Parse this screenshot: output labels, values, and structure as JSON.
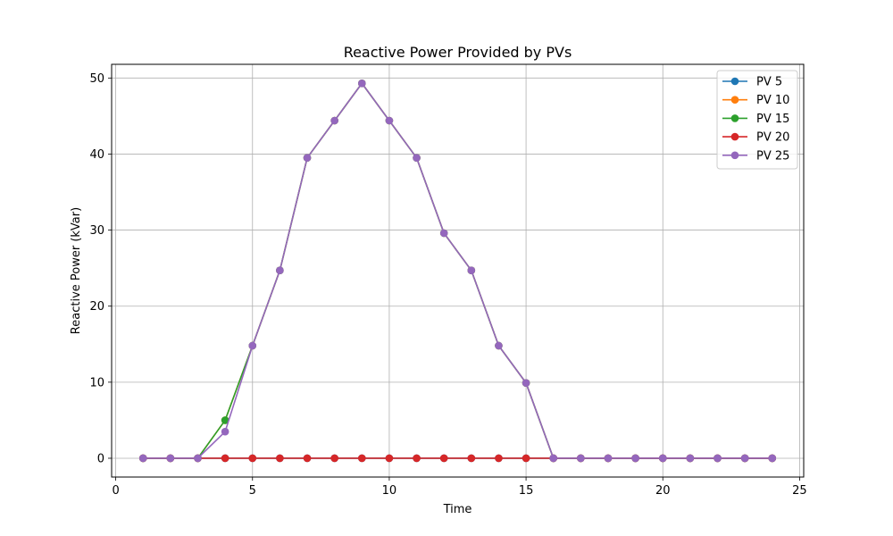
{
  "chart_data": {
    "type": "line",
    "title": "Reactive Power Provided by PVs",
    "xlabel": "Time",
    "ylabel": "Reactive Power (kVar)",
    "xlim": [
      -0.15,
      25.15
    ],
    "ylim": [
      -2.47,
      51.8
    ],
    "xticks": [
      0,
      5,
      10,
      15,
      20,
      25
    ],
    "yticks": [
      0,
      10,
      20,
      30,
      40,
      50
    ],
    "grid": true,
    "legend_position": "top-right",
    "x": [
      1,
      2,
      3,
      4,
      5,
      6,
      7,
      8,
      9,
      10,
      11,
      12,
      13,
      14,
      15,
      16,
      17,
      18,
      19,
      20,
      21,
      22,
      23,
      24
    ],
    "series": [
      {
        "name": "PV 5",
        "color": "#1f77b4",
        "values": [
          0,
          0,
          0,
          0,
          0,
          0,
          0,
          0,
          0,
          0,
          0,
          0,
          0,
          0,
          0,
          0,
          0,
          0,
          0,
          0,
          0,
          0,
          0,
          0
        ]
      },
      {
        "name": "PV 10",
        "color": "#ff7f0e",
        "values": [
          0,
          0,
          0,
          5,
          14.8,
          24.7,
          39.5,
          44.4,
          49.3,
          44.4,
          39.5,
          29.6,
          24.7,
          14.8,
          9.9,
          0,
          0,
          0,
          0,
          0,
          0,
          0,
          0,
          0
        ]
      },
      {
        "name": "PV 15",
        "color": "#2ca02c",
        "values": [
          0,
          0,
          0,
          5,
          14.8,
          24.7,
          39.5,
          44.4,
          49.3,
          44.4,
          39.5,
          29.6,
          24.7,
          14.8,
          9.9,
          0,
          0,
          0,
          0,
          0,
          0,
          0,
          0,
          0
        ]
      },
      {
        "name": "PV 20",
        "color": "#d62728",
        "values": [
          0,
          0,
          0,
          0,
          0,
          0,
          0,
          0,
          0,
          0,
          0,
          0,
          0,
          0,
          0,
          0,
          0,
          0,
          0,
          0,
          0,
          0,
          0,
          0
        ]
      },
      {
        "name": "PV 25",
        "color": "#9467bd",
        "values": [
          0,
          0,
          0,
          3.5,
          14.8,
          24.7,
          39.5,
          44.4,
          49.3,
          44.4,
          39.5,
          29.6,
          24.7,
          14.8,
          9.9,
          0,
          0,
          0,
          0,
          0,
          0,
          0,
          0,
          0
        ]
      }
    ]
  }
}
